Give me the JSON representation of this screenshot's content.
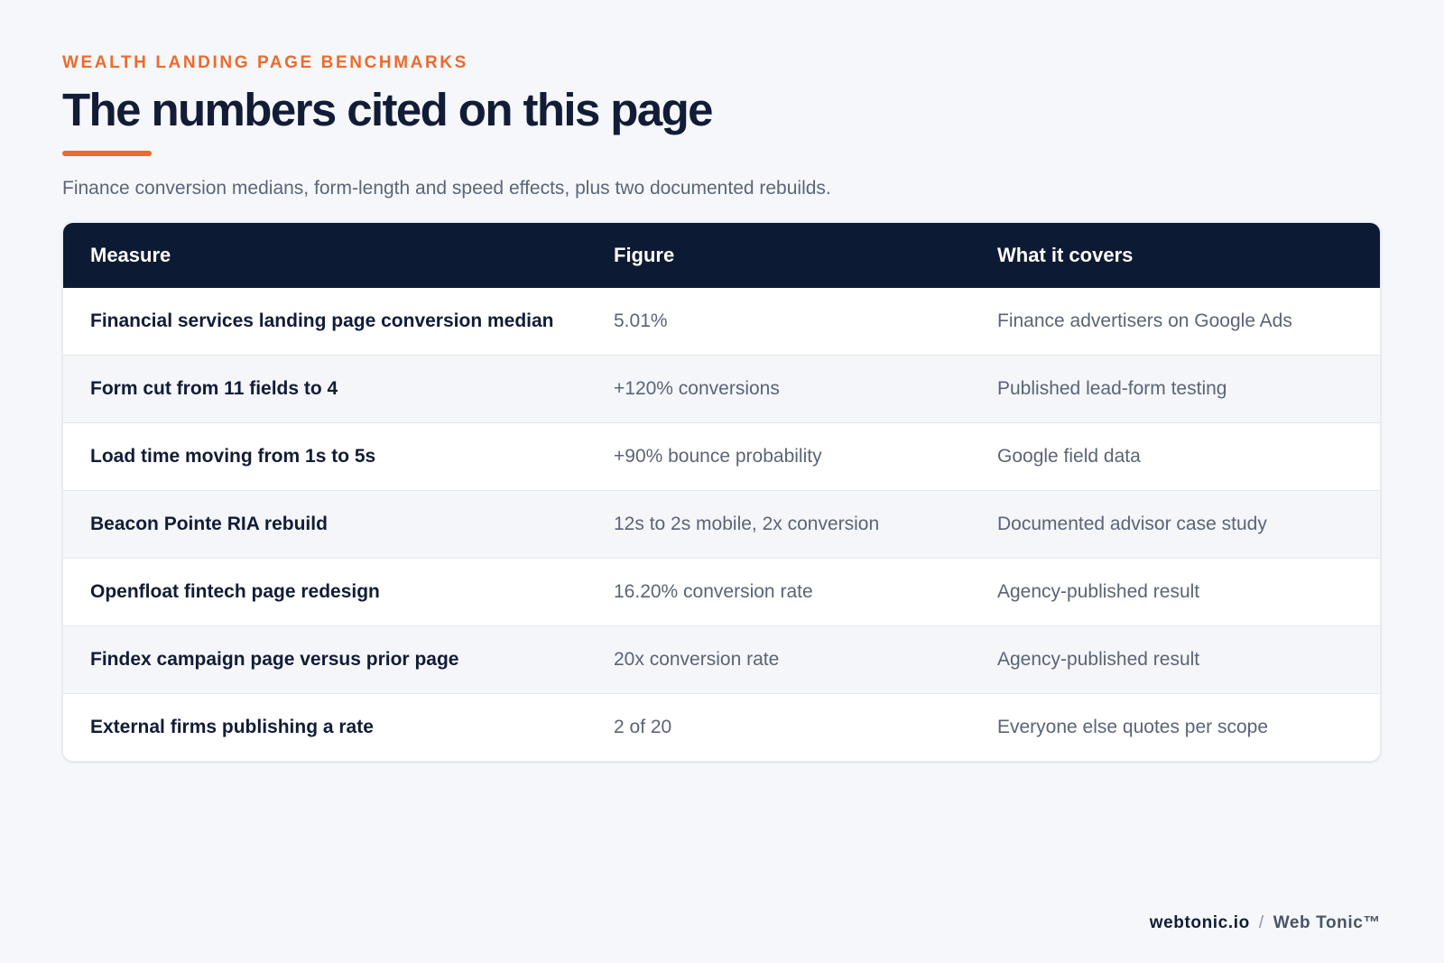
{
  "header": {
    "eyebrow": "WEALTH LANDING PAGE BENCHMARKS",
    "title": "The numbers cited on this page",
    "subtitle": "Finance conversion medians, form-length and speed effects, plus two documented rebuilds."
  },
  "table": {
    "columns": [
      "Measure",
      "Figure",
      "What it covers"
    ],
    "rows": [
      {
        "measure": "Financial services landing page conversion median",
        "figure": "5.01%",
        "covers": "Finance advertisers on Google Ads"
      },
      {
        "measure": "Form cut from 11 fields to 4",
        "figure": "+120% conversions",
        "covers": "Published lead-form testing"
      },
      {
        "measure": "Load time moving from 1s to 5s",
        "figure": "+90% bounce probability",
        "covers": "Google field data"
      },
      {
        "measure": "Beacon Pointe RIA rebuild",
        "figure": "12s to 2s mobile, 2x conversion",
        "covers": "Documented advisor case study"
      },
      {
        "measure": "Openfloat fintech page redesign",
        "figure": "16.20% conversion rate",
        "covers": "Agency-published result"
      },
      {
        "measure": "Findex campaign page versus prior page",
        "figure": "20x conversion rate",
        "covers": "Agency-published result"
      },
      {
        "measure": "External firms publishing a rate",
        "figure": "2 of 20",
        "covers": "Everyone else quotes per scope"
      }
    ]
  },
  "footer": {
    "site": "webtonic.io",
    "separator": "/",
    "brand": "Web Tonic™"
  },
  "colors": {
    "accent": "#ec6b2d",
    "header_bg": "#0d1a33",
    "title_text": "#121c36"
  }
}
